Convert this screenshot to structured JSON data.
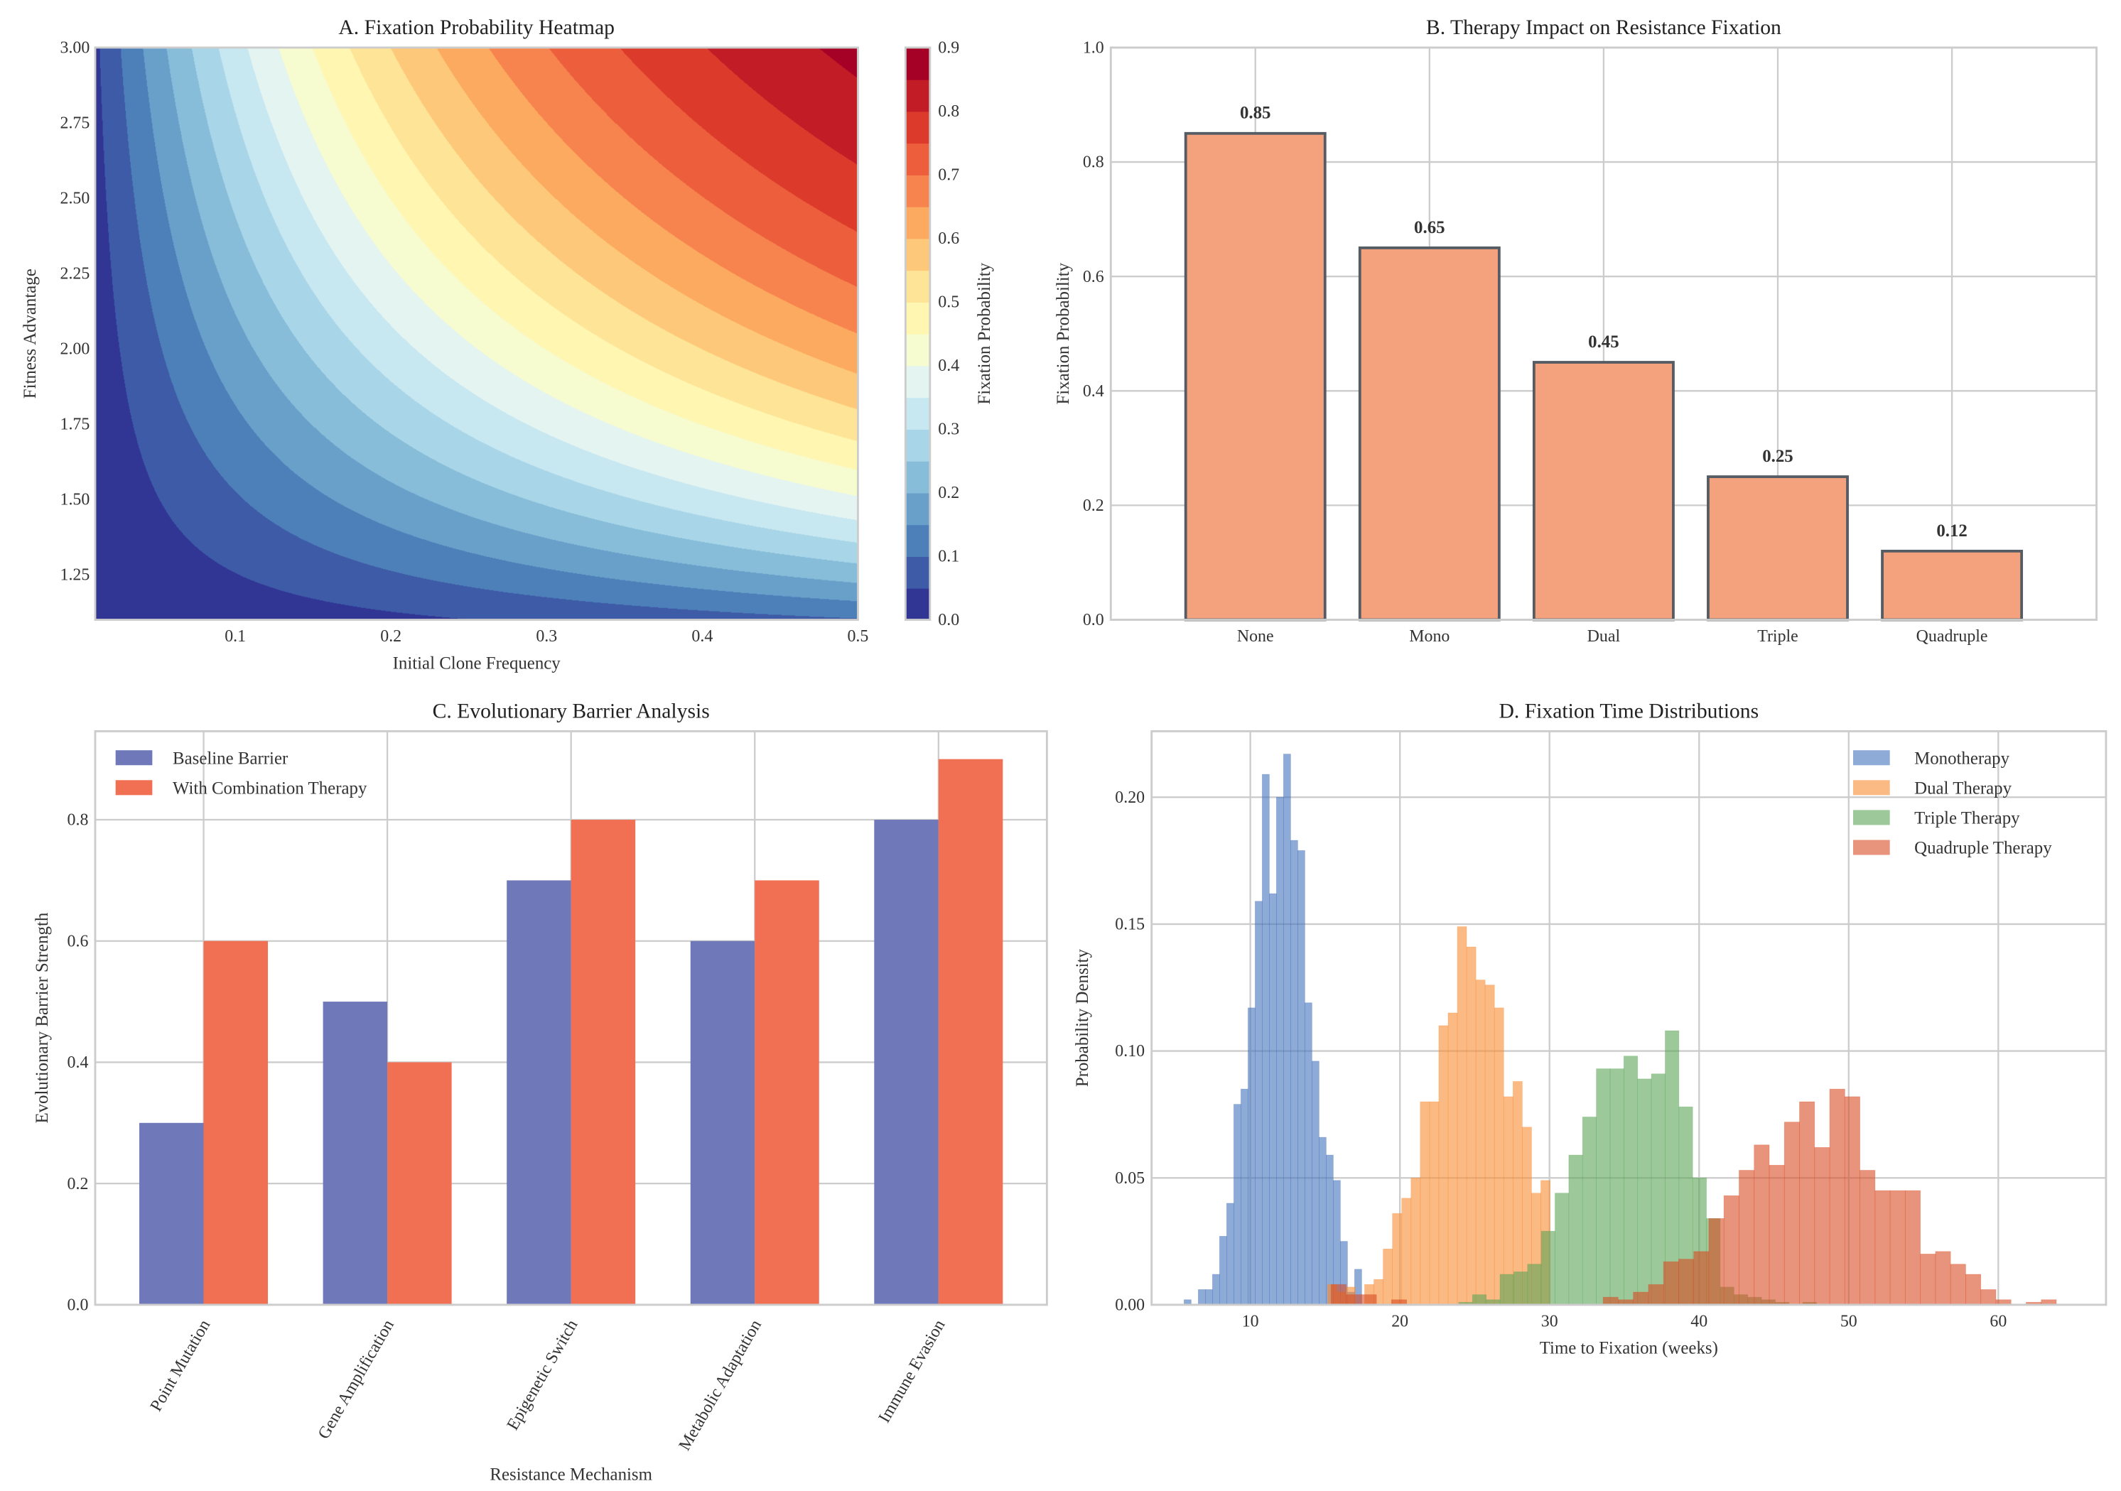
{
  "chart_data": [
    {
      "panel": "A",
      "type": "heatmap",
      "title": "A. Fixation Probability Heatmap",
      "xlabel": "Initial Clone Frequency",
      "ylabel": "Fitness Advantage",
      "xlim": [
        0.01,
        0.5
      ],
      "ylim": [
        1.1,
        3.0
      ],
      "xticks": [
        "0.1",
        "0.2",
        "0.3",
        "0.4",
        "0.5"
      ],
      "yticks": [
        "1.25",
        "1.50",
        "1.75",
        "2.00",
        "2.25",
        "2.50",
        "2.75",
        "3.00"
      ],
      "model": {
        "form": "1 - exp(-k * x * (y - 1))",
        "k": 2
      },
      "colormap": "RdYlBu_r",
      "levels": {
        "min": 0.0,
        "max": 0.9,
        "step": 0.05
      },
      "colorbar": {
        "label": "Fixation Probability",
        "ticks": [
          "0.0",
          "0.1",
          "0.2",
          "0.3",
          "0.4",
          "0.5",
          "0.6",
          "0.7",
          "0.8",
          "0.9"
        ]
      }
    },
    {
      "panel": "B",
      "type": "bar",
      "title": "B. Therapy Impact on Resistance Fixation",
      "xlabel": "",
      "ylabel": "Fixation Probability",
      "categories": [
        "None",
        "Mono",
        "Dual",
        "Triple",
        "Quadruple"
      ],
      "values": [
        0.85,
        0.65,
        0.45,
        0.25,
        0.12
      ],
      "value_labels": [
        "0.85",
        "0.65",
        "0.45",
        "0.25",
        "0.12"
      ],
      "ylim": [
        0,
        1.0
      ],
      "yticks": [
        "0.0",
        "0.2",
        "0.4",
        "0.6",
        "0.8",
        "1.0"
      ],
      "color": "#f4a27e",
      "edge_color": "#555c63",
      "grid": true
    },
    {
      "panel": "C",
      "type": "bar",
      "title": "C. Evolutionary Barrier Analysis",
      "xlabel": "Resistance Mechanism",
      "ylabel": "Evolutionary Barrier Strength",
      "categories": [
        "Point Mutation",
        "Gene Amplification",
        "Epigenetic Switch",
        "Metabolic Adaptation",
        "Immune Evasion"
      ],
      "series": [
        {
          "name": "Baseline Barrier",
          "values": [
            0.3,
            0.5,
            0.7,
            0.6,
            0.8
          ],
          "color": "#6f78b8"
        },
        {
          "name": "With Combination Therapy",
          "values": [
            0.6,
            0.4,
            0.8,
            0.7,
            0.9
          ],
          "color": "#f16f52"
        }
      ],
      "ylim": [
        0,
        0.946
      ],
      "yticks": [
        "0.0",
        "0.2",
        "0.4",
        "0.6",
        "0.8"
      ],
      "legend": "top-left",
      "grid": true
    },
    {
      "panel": "D",
      "type": "histogram",
      "title": "D. Fixation Time Distributions",
      "xlabel": "Time to Fixation (weeks)",
      "ylabel": "Probability Density",
      "xlim": [
        3.4,
        67.2
      ],
      "ylim": [
        0,
        0.226
      ],
      "xticks": [
        "10",
        "20",
        "30",
        "40",
        "50",
        "60"
      ],
      "yticks": [
        "0.00",
        "0.05",
        "0.10",
        "0.15",
        "0.20"
      ],
      "legend": "top-right",
      "grid": true,
      "series": [
        {
          "name": "Monotherapy",
          "color": "#4371bb",
          "bin_start": 5.57,
          "bin_width": 0.475,
          "density": [
            0.002,
            0,
            0.006,
            0.006,
            0.012,
            0.027,
            0.04,
            0.079,
            0.085,
            0.117,
            0.159,
            0.209,
            0.162,
            0.2,
            0.217,
            0.183,
            0.179,
            0.119,
            0.096,
            0.066,
            0.059,
            0.049,
            0.025,
            0.005,
            0.014
          ]
        },
        {
          "name": "Dual Therapy",
          "color": "#f88a30",
          "bin_start": 15.16,
          "bin_width": 0.62,
          "density": [
            0.008,
            0.005,
            0.007,
            0,
            0.008,
            0.01,
            0.022,
            0.036,
            0.042,
            0.05,
            0.08,
            0.08,
            0.11,
            0.115,
            0.149,
            0.141,
            0.128,
            0.126,
            0.117,
            0.082,
            0.088,
            0.07,
            0.044,
            0.049
          ]
        },
        {
          "name": "Triple Therapy",
          "color": "#5ca557",
          "bin_start": 23.93,
          "bin_width": 0.92,
          "density": [
            0.001,
            0.004,
            0.002,
            0.012,
            0.013,
            0.016,
            0.029,
            0.044,
            0.059,
            0.074,
            0.093,
            0.093,
            0.098,
            0.089,
            0.091,
            0.108,
            0.078,
            0.05,
            0.034,
            0.007,
            0.004,
            0.003,
            0.002,
            0.001,
            0,
            0.001
          ]
        },
        {
          "name": "Quadruple Therapy",
          "color": "#d94b23",
          "bin_start": 15.4,
          "bin_width": 1.01,
          "density": [
            0.008,
            0.004,
            0.004,
            0,
            0.002,
            0,
            0,
            0,
            0,
            0,
            0,
            0,
            0,
            0,
            0,
            0,
            0,
            0,
            0.003,
            0.002,
            0.005,
            0.008,
            0.017,
            0.018,
            0.021,
            0.034,
            0.043,
            0.053,
            0.063,
            0.055,
            0.072,
            0.08,
            0.062,
            0.085,
            0.082,
            0.053,
            0.045,
            0.045,
            0.045,
            0.02,
            0.021,
            0.016,
            0.012,
            0.006,
            0.002,
            0,
            0.001,
            0.002
          ]
        }
      ]
    }
  ]
}
